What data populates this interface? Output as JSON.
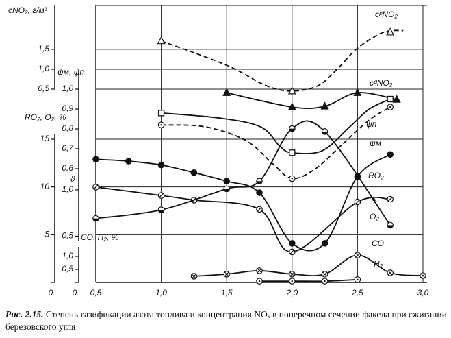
{
  "chart_data": {
    "type": "line",
    "caption_label": "Рис. 2.15.",
    "caption": "Степень газификации азота топлива и концентрация NOₓ в поперечном сечении факела при сжигании березовского угля",
    "xlim": [
      0.5,
      3.0
    ],
    "xticks": [
      {
        "value": 0.5,
        "label": "0,5"
      },
      {
        "value": 1.0,
        "label": "1,0"
      },
      {
        "value": 1.5,
        "label": "1,5"
      },
      {
        "value": 2.0,
        "label": "2,0"
      },
      {
        "value": 2.5,
        "label": "2,5"
      },
      {
        "value": 3.0,
        "label": "3,0"
      }
    ],
    "ylabel": "cNO₂, г/м³",
    "ylim": [
      0.5,
      2.6
    ],
    "yticks": [
      {
        "value": 0.5,
        "label": "0,5"
      },
      {
        "value": 1.0,
        "label": "1,0"
      },
      {
        "value": 1.5,
        "label": "1,5"
      }
    ],
    "y2label": "ψм, ψп",
    "y2lim": [
      0.55,
      1.0
    ],
    "y2ticks": [
      {
        "value": 0.6,
        "label": "0,6"
      },
      {
        "value": 0.7,
        "label": "0,7"
      },
      {
        "value": 0.8,
        "label": "0,8"
      },
      {
        "value": 0.9,
        "label": "0,9"
      },
      {
        "value": 1.0,
        "label": "1,0"
      }
    ],
    "y3label": "RO₂, O₂, %",
    "y3lim": [
      0,
      15
    ],
    "y3ticks": [
      0,
      5,
      10,
      15
    ],
    "y4label": "ϑ",
    "y4lim": [
      0,
      1.0
    ],
    "y4ticks": [
      {
        "value": 0.5,
        "label": "0,5"
      },
      {
        "value": 1.0,
        "label": "1,0"
      }
    ],
    "y5label": "CO, H₂, %",
    "y5lim": [
      0,
      1.0
    ],
    "y5ticks": [
      0,
      {
        "value": 0.5,
        "label": "0,5"
      },
      {
        "value": 1.0,
        "label": "1,0"
      }
    ],
    "grid": true,
    "series": [
      {
        "name": "cᵖNO₂",
        "axis": "y",
        "color": "#111",
        "marker": "triangle-open",
        "dash": true,
        "x": [
          1.0,
          2.0,
          2.75
        ],
        "values": [
          1.71,
          0.45,
          1.93
        ],
        "curve_x": [
          1.0,
          1.5,
          1.8,
          2.0,
          2.2,
          2.35,
          2.5,
          2.7,
          2.85
        ],
        "curve_values": [
          1.71,
          1.1,
          0.59,
          0.45,
          0.59,
          1.02,
          1.53,
          1.93,
          1.97
        ]
      },
      {
        "name": "cᵈNO₂",
        "axis": "y",
        "color": "#111",
        "marker": "triangle",
        "x": [
          1.5,
          2.0,
          2.25,
          2.5,
          2.8
        ],
        "values": [
          0.41,
          0.05,
          0.07,
          0.41,
          0.24
        ]
      },
      {
        "name": "ψп",
        "axis": "y2",
        "color": "#111",
        "marker": "circle-dot",
        "dash": true,
        "x": [
          1.0,
          2.0,
          2.75
        ],
        "values": [
          0.82,
          0.55,
          0.91
        ],
        "curve_x": [
          1.0,
          1.34,
          1.65,
          1.86,
          2.0,
          2.18,
          2.38,
          2.59,
          2.75
        ],
        "curve_values": [
          0.82,
          0.81,
          0.74,
          0.62,
          0.55,
          0.6,
          0.72,
          0.845,
          0.91
        ]
      },
      {
        "name": "ψм",
        "axis": "y2",
        "color": "#111",
        "marker": "square-open",
        "x": [
          1.0,
          2.0,
          2.75
        ],
        "values": [
          0.88,
          0.68,
          0.95
        ],
        "curve_x": [
          1.0,
          1.44,
          1.76,
          1.91,
          2.0,
          2.23,
          2.44,
          2.59,
          2.75
        ],
        "curve_values": [
          0.88,
          0.855,
          0.81,
          0.71,
          0.68,
          0.69,
          0.81,
          0.9,
          0.95
        ]
      },
      {
        "name": "RO₂",
        "axis": "y3",
        "color": "#111",
        "marker": "circle",
        "x": [
          0.5,
          0.75,
          1.0,
          1.25,
          1.5,
          1.75,
          2.0,
          2.25,
          2.5,
          2.75
        ],
        "values": [
          12.9,
          12.7,
          12.3,
          11.5,
          10.6,
          9.4,
          4.1,
          4.1,
          11.1,
          13.4
        ]
      },
      {
        "name": "ϑ",
        "axis": "y4",
        "color": "#111",
        "marker": "circle-slash",
        "x": [
          0.5,
          1.0,
          1.25,
          1.75,
          2.0,
          2.5,
          2.75
        ],
        "values": [
          1.03,
          0.94,
          0.89,
          0.79,
          0.33,
          0.87,
          0.9
        ]
      },
      {
        "name": "O₂",
        "axis": "y3",
        "color": "#111",
        "marker": "circle-half",
        "x": [
          0.5,
          1.0,
          1.5,
          1.75,
          2.0,
          2.25,
          2.75
        ],
        "values": [
          6.7,
          7.6,
          9.8,
          10.6,
          16.1,
          15.8,
          6.0
        ]
      },
      {
        "name": "CO",
        "axis": "y5",
        "color": "#111",
        "marker": "circle-x",
        "x": [
          1.25,
          1.5,
          1.75,
          2.0,
          2.25,
          2.5,
          2.75,
          3.0
        ],
        "values": [
          0.24,
          0.32,
          0.45,
          0.32,
          0.32,
          1.05,
          0.37,
          0.26
        ]
      },
      {
        "name": "H₂",
        "axis": "y5",
        "color": "#111",
        "marker": "circle-dot",
        "x": [
          1.75,
          2.0,
          2.25,
          2.5
        ],
        "values": [
          0.05,
          0.05,
          0.05,
          0.11
        ]
      }
    ]
  }
}
